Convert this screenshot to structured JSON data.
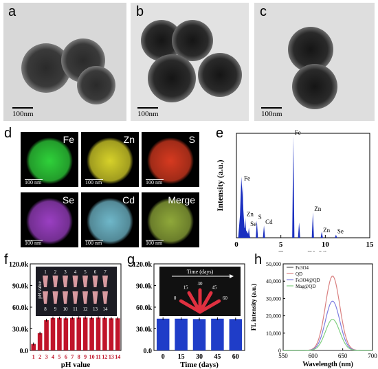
{
  "panels": {
    "a": {
      "letter": "a",
      "scale": "100nm"
    },
    "b": {
      "letter": "b",
      "scale": "100nm"
    },
    "c": {
      "letter": "c",
      "scale": "100nm"
    },
    "d": {
      "letter": "d",
      "maps": [
        {
          "label": "Fe",
          "scale": "100 nm",
          "color": "#2fd13a"
        },
        {
          "label": "Zn",
          "scale": "100 nm",
          "color": "#d6d12a"
        },
        {
          "label": "S",
          "scale": "100 nm",
          "color": "#d63a20"
        },
        {
          "label": "Se",
          "scale": "100 nm",
          "color": "#9a3fc2"
        },
        {
          "label": "Cd",
          "scale": "100 nm",
          "color": "#6fb7c9"
        },
        {
          "label": "Merge",
          "scale": "100 nm",
          "color": "#8fa83a"
        }
      ]
    },
    "e": {
      "letter": "e"
    },
    "f": {
      "letter": "f",
      "inset_ylabel": "pH value",
      "inset_top_nums": [
        "1",
        "2",
        "3",
        "4",
        "5",
        "6",
        "7"
      ],
      "inset_bottom_nums": [
        "8",
        "9",
        "10",
        "11",
        "12",
        "13",
        "14"
      ]
    },
    "g": {
      "letter": "g",
      "inset_title": "Time (days)",
      "inset_fan": [
        "0",
        "15",
        "30",
        "45",
        "60"
      ]
    },
    "h": {
      "letter": "h"
    }
  },
  "chart_data": [
    {
      "type": "bar",
      "panel": "e",
      "xlabel": "Energy (KeV)",
      "ylabel": "Intensity (a.u.)",
      "xlim": [
        0,
        15
      ],
      "xticks": [
        "0",
        "5",
        "10",
        "15"
      ],
      "peaks": [
        {
          "label": "Fe",
          "x": 0.7,
          "y": 0.55
        },
        {
          "label": "Zn",
          "x": 1.0,
          "y": 0.2
        },
        {
          "label": "Se",
          "x": 1.4,
          "y": 0.1
        },
        {
          "label": "S",
          "x": 2.3,
          "y": 0.17
        },
        {
          "label": "Cd",
          "x": 3.1,
          "y": 0.12
        },
        {
          "label": "Fe",
          "x": 6.4,
          "y": 1.0
        },
        {
          "label": "",
          "x": 7.05,
          "y": 0.15
        },
        {
          "label": "Zn",
          "x": 8.6,
          "y": 0.25
        },
        {
          "label": "",
          "x": 9.6,
          "y": 0.06
        },
        {
          "label": "Zn",
          "x": 9.6,
          "y": 0.04
        },
        {
          "label": "Se",
          "x": 11.2,
          "y": 0.03
        }
      ]
    },
    {
      "type": "bar",
      "panel": "f",
      "xlabel": "pH value",
      "ylabel": "",
      "ylim": [
        0,
        120000
      ],
      "yticks": [
        "0.0",
        "30.0k",
        "60.0k",
        "90.0k",
        "120.0k"
      ],
      "categories": [
        "1",
        "2",
        "3",
        "4",
        "5",
        "6",
        "7",
        "8",
        "9",
        "10",
        "11",
        "12",
        "13",
        "14"
      ],
      "values": [
        9000,
        24000,
        42000,
        45000,
        45000,
        44500,
        45000,
        45500,
        45500,
        45000,
        45500,
        45000,
        44500,
        44500
      ],
      "color": "#c0142a"
    },
    {
      "type": "bar",
      "panel": "g",
      "xlabel": "Time (days)",
      "ylabel": "",
      "ylim": [
        0,
        120000
      ],
      "yticks": [
        "0.0",
        "30.0k",
        "60.0k",
        "90.0k",
        "120.0k"
      ],
      "categories": [
        "0",
        "15",
        "30",
        "45",
        "60"
      ],
      "values": [
        44000,
        44000,
        43500,
        44000,
        43500
      ],
      "color": "#1f3dc8"
    },
    {
      "type": "line",
      "panel": "h",
      "xlabel": "Wavelength (nm)",
      "ylabel": "FL intensity (a.u.)",
      "xlim": [
        550,
        700
      ],
      "ylim": [
        0,
        50000
      ],
      "xticks": [
        "550",
        "600",
        "650",
        "700"
      ],
      "yticks": [
        "0",
        "10,000",
        "20,000",
        "30,000",
        "40,000",
        "50,000"
      ],
      "legend": [
        "Fe3O4",
        "QD",
        "Fe3O4@QD",
        "Mag@QD"
      ],
      "series": [
        {
          "name": "Fe3O4",
          "color": "#555555",
          "peak": 0,
          "center": 633,
          "width": 17
        },
        {
          "name": "QD",
          "color": "#d98080",
          "peak": 43000,
          "center": 633,
          "width": 17
        },
        {
          "name": "Fe3O4@QD",
          "color": "#7d7de0",
          "peak": 28500,
          "center": 633,
          "width": 17
        },
        {
          "name": "Mag@QD",
          "color": "#7fcf7f",
          "peak": 18000,
          "center": 633,
          "width": 17
        }
      ]
    }
  ]
}
